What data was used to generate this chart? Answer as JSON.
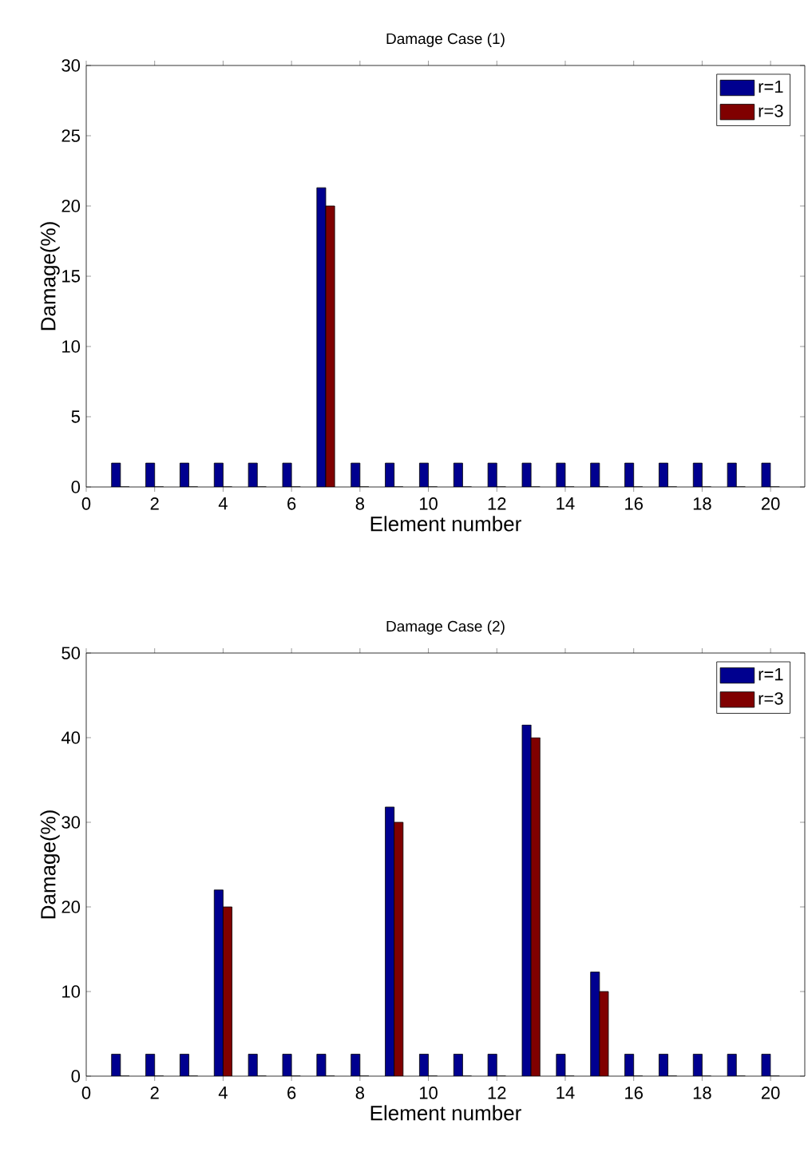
{
  "chart_data": [
    {
      "type": "bar",
      "title": "Damage Case (1)",
      "xlabel": "Element number",
      "ylabel": "Damage(%)",
      "x": [
        1,
        2,
        3,
        4,
        5,
        6,
        7,
        8,
        9,
        10,
        11,
        12,
        13,
        14,
        15,
        16,
        17,
        18,
        19,
        20
      ],
      "xlim": [
        0,
        21
      ],
      "xticks": [
        0,
        2,
        4,
        6,
        8,
        10,
        12,
        14,
        16,
        18,
        20
      ],
      "ylim": [
        0,
        30
      ],
      "yticks": [
        0,
        5,
        10,
        15,
        20,
        25,
        30
      ],
      "legend": "top right",
      "series": [
        {
          "name": "r=1",
          "color": "#00008f",
          "values": [
            1.7,
            1.7,
            1.7,
            1.7,
            1.7,
            1.7,
            21.3,
            1.7,
            1.7,
            1.7,
            1.7,
            1.7,
            1.7,
            1.7,
            1.7,
            1.7,
            1.7,
            1.7,
            1.7,
            1.7
          ]
        },
        {
          "name": "r=3",
          "color": "#800000",
          "values": [
            0,
            0,
            0,
            0,
            0,
            0,
            20,
            0,
            0,
            0,
            0,
            0,
            0,
            0,
            0,
            0,
            0,
            0,
            0,
            0
          ]
        }
      ]
    },
    {
      "type": "bar",
      "title": "Damage Case (2)",
      "xlabel": "Element number",
      "ylabel": "Damage(%)",
      "x": [
        1,
        2,
        3,
        4,
        5,
        6,
        7,
        8,
        9,
        10,
        11,
        12,
        13,
        14,
        15,
        16,
        17,
        18,
        19,
        20
      ],
      "xlim": [
        0,
        21
      ],
      "xticks": [
        0,
        2,
        4,
        6,
        8,
        10,
        12,
        14,
        16,
        18,
        20
      ],
      "ylim": [
        0,
        50
      ],
      "yticks": [
        0,
        10,
        20,
        30,
        40,
        50
      ],
      "legend": "top right",
      "series": [
        {
          "name": "r=1",
          "color": "#00008f",
          "values": [
            2.6,
            2.6,
            2.6,
            22,
            2.6,
            2.6,
            2.6,
            2.6,
            31.8,
            2.6,
            2.6,
            2.6,
            41.5,
            2.6,
            12.3,
            2.6,
            2.6,
            2.6,
            2.6,
            2.6
          ]
        },
        {
          "name": "r=3",
          "color": "#800000",
          "values": [
            0,
            0,
            0,
            20,
            0,
            0,
            0,
            0,
            30,
            0,
            0,
            0,
            40,
            0,
            10,
            0,
            0,
            0,
            0,
            0
          ]
        }
      ]
    }
  ]
}
